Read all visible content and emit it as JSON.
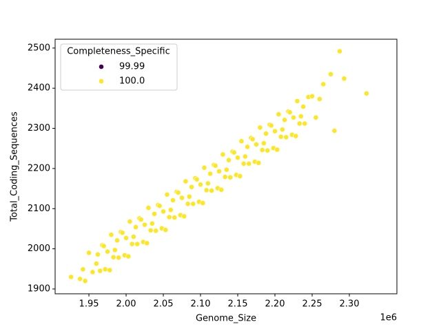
{
  "chart_data": {
    "type": "scatter",
    "x_label": "Genome_Size",
    "y_label": "Total_Coding_Sequences",
    "x_offset_label": "1e6",
    "legend_title": "Completeness_Specific",
    "legend_loc": "upper left",
    "xlim": [
      1904600,
      2363900
    ],
    "ylim": [
      1888,
      2522
    ],
    "xticks": [
      {
        "value": 1950000,
        "label": "1.95"
      },
      {
        "value": 2000000,
        "label": "2.00"
      },
      {
        "value": 2050000,
        "label": "2.05"
      },
      {
        "value": 2100000,
        "label": "2.10"
      },
      {
        "value": 2150000,
        "label": "2.15"
      },
      {
        "value": 2200000,
        "label": "2.20"
      },
      {
        "value": 2250000,
        "label": "2.25"
      },
      {
        "value": 2300000,
        "label": "2.30"
      }
    ],
    "yticks": [
      1900,
      2000,
      2100,
      2200,
      2300,
      2400,
      2500
    ],
    "series": [
      {
        "name": "99.99",
        "color": "#440154",
        "x": [],
        "y": []
      },
      {
        "name": "100.0",
        "color": "#fde725",
        "x": [
          1926000,
          1938000,
          1942000,
          1945000,
          1950000,
          1955000,
          1960000,
          1962000,
          1965000,
          1968000,
          1970000,
          1972000,
          1975000,
          1978000,
          1980000,
          1983000,
          1985000,
          1988000,
          1990000,
          1993000,
          1995000,
          1998000,
          2000000,
          2003000,
          2005000,
          2008000,
          2010000,
          2013000,
          2015000,
          2018000,
          2020000,
          2023000,
          2025000,
          2028000,
          2030000,
          2033000,
          2035000,
          2038000,
          2040000,
          2043000,
          2045000,
          2048000,
          2050000,
          2053000,
          2055000,
          2058000,
          2060000,
          2063000,
          2065000,
          2068000,
          2070000,
          2073000,
          2075000,
          2078000,
          2080000,
          2083000,
          2085000,
          2088000,
          2090000,
          2093000,
          2095000,
          2098000,
          2100000,
          2103000,
          2105000,
          2108000,
          2110000,
          2113000,
          2115000,
          2118000,
          2120000,
          2123000,
          2125000,
          2128000,
          2130000,
          2133000,
          2135000,
          2138000,
          2140000,
          2143000,
          2145000,
          2148000,
          2150000,
          2153000,
          2155000,
          2158000,
          2160000,
          2163000,
          2165000,
          2168000,
          2170000,
          2173000,
          2175000,
          2178000,
          2180000,
          2183000,
          2185000,
          2188000,
          2190000,
          2193000,
          2195000,
          2198000,
          2200000,
          2203000,
          2205000,
          2208000,
          2210000,
          2213000,
          2215000,
          2218000,
          2220000,
          2223000,
          2225000,
          2228000,
          2230000,
          2233000,
          2235000,
          2238000,
          2240000,
          2245000,
          2250000,
          2255000,
          2260000,
          2265000,
          2275000,
          2280000,
          2287000,
          2293000,
          2323000
        ],
        "y": [
          1930,
          1925,
          1949,
          1920,
          1990,
          1942,
          1963,
          1986,
          1945,
          2009,
          2007,
          1949,
          1993,
          1947,
          2035,
          1979,
          1997,
          2021,
          1978,
          2042,
          2040,
          1984,
          2027,
          1981,
          2068,
          2012,
          2030,
          2054,
          2012,
          2076,
          2073,
          2017,
          2060,
          2014,
          2102,
          2046,
          2063,
          2087,
          2045,
          2109,
          2107,
          2051,
          2093,
          2047,
          2135,
          2079,
          2097,
          2121,
          2078,
          2142,
          2140,
          2084,
          2127,
          2081,
          2168,
          2112,
          2130,
          2154,
          2112,
          2176,
          2173,
          2117,
          2160,
          2114,
          2202,
          2146,
          2163,
          2187,
          2145,
          2209,
          2207,
          2151,
          2193,
          2147,
          2235,
          2179,
          2197,
          2221,
          2178,
          2242,
          2240,
          2184,
          2227,
          2181,
          2268,
          2212,
          2230,
          2254,
          2212,
          2276,
          2273,
          2217,
          2260,
          2214,
          2302,
          2246,
          2263,
          2287,
          2245,
          2309,
          2307,
          2251,
          2293,
          2247,
          2335,
          2279,
          2297,
          2321,
          2278,
          2342,
          2340,
          2284,
          2327,
          2281,
          2368,
          2312,
          2330,
          2354,
          2312,
          2378,
          2380,
          2327,
          2373,
          2410,
          2435,
          2294,
          2492,
          2424,
          2387
        ]
      }
    ]
  }
}
